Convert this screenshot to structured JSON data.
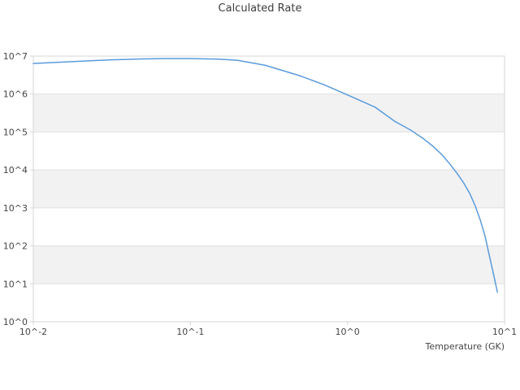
{
  "figure": {
    "title": "Calculated Rate",
    "x_axis_label": "Temperature (GK)"
  },
  "chart_data": {
    "type": "line",
    "title": "Calculated Rate",
    "xlabel": "Temperature (GK)",
    "ylabel": "",
    "x_scale": "log",
    "y_scale": "log",
    "xlim": [
      0.01,
      10
    ],
    "ylim": [
      1,
      10000000
    ],
    "x_tick_labels": [
      "10^-2",
      "10^-1",
      "10^0",
      "10^1"
    ],
    "x_tick_values": [
      0.01,
      0.1,
      1,
      10
    ],
    "y_tick_labels": [
      "10^0",
      "10^1",
      "10^2",
      "10^3",
      "10^4",
      "10^5",
      "10^6",
      "10^7"
    ],
    "y_tick_values": [
      1,
      10,
      100,
      1000,
      10000,
      100000,
      1000000,
      10000000
    ],
    "grid": "horizontal-major-only",
    "band_fill": "alternating-gray-between-decades",
    "legend": "none",
    "series": [
      {
        "name": "calculated-rate",
        "x": [
          0.01,
          0.015,
          0.02,
          0.03,
          0.05,
          0.07,
          0.1,
          0.15,
          0.2,
          0.3,
          0.5,
          0.7,
          1.0,
          1.5,
          2.0,
          2.5,
          3.0,
          3.5,
          4.0,
          4.5,
          5.0,
          5.5,
          6.0,
          6.5,
          7.0,
          7.5,
          8.0,
          8.5,
          9.0
        ],
        "y": [
          6400000,
          6900000,
          7300000,
          7900000,
          8400000,
          8600000,
          8600000,
          8300000,
          7700000,
          5700000,
          3000000,
          1800000,
          950000,
          450000,
          190000,
          115000,
          70000,
          42000,
          25000,
          14000,
          8000,
          4500,
          2400,
          1150,
          480,
          185,
          55,
          18,
          6
        ]
      }
    ]
  },
  "style": {
    "line_color": "#5a9bdc",
    "band_color": "#f2f2f2",
    "grid_color": "#e0e0e0",
    "border_color": "#d6d6d6",
    "title_color": "#3d3d3d",
    "tick_label_color": "#454545",
    "background": "#ffffff"
  }
}
